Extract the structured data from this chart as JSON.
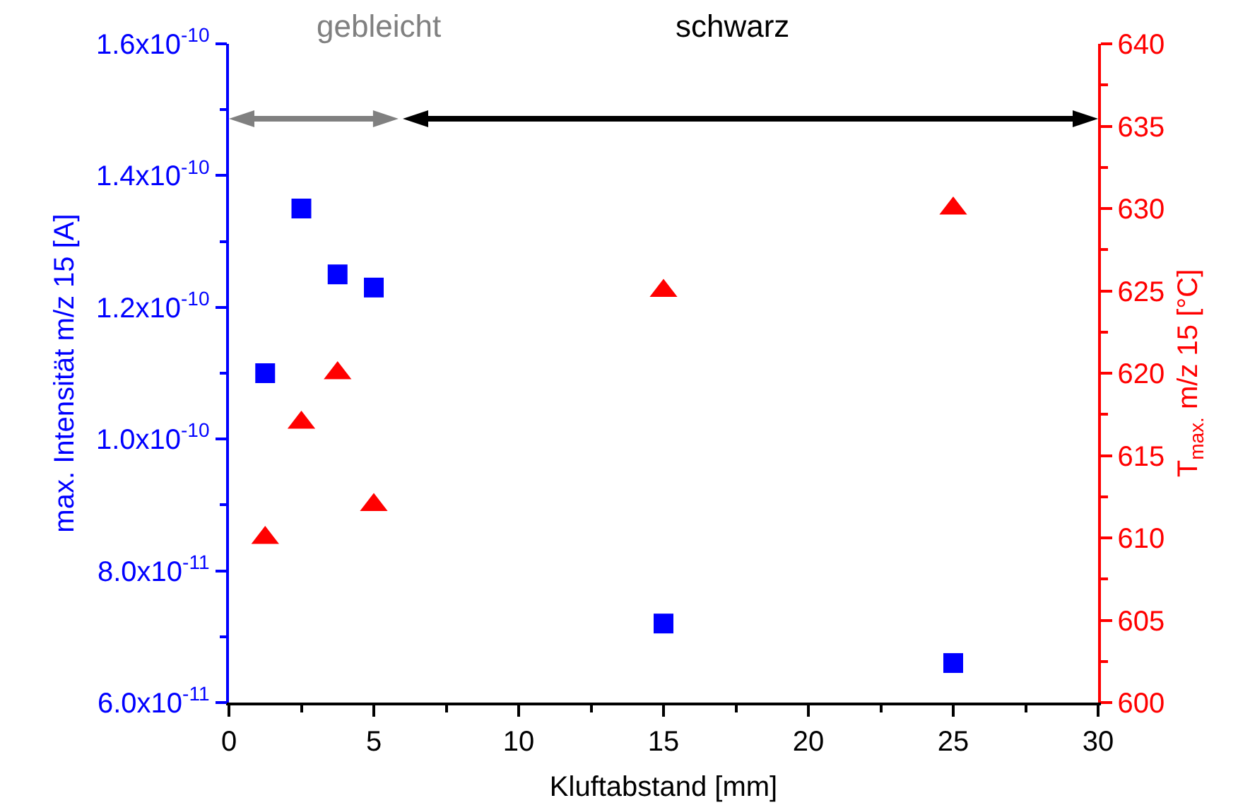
{
  "chart_data": {
    "type": "scatter",
    "xlabel": "Kluftabstand [mm]",
    "ylabel": "max. Intensität m/z 15 [A]",
    "y2label": "T$_{max.}$ m/z 15 [°C]",
    "x": [
      1.25,
      2.5,
      3.75,
      5,
      15,
      25
    ],
    "series": [
      {
        "color": "#0000ff",
        "marker": "square",
        "values": [
          1.1e-10,
          1.35e-10,
          1.25e-10,
          1.23e-10,
          7.2e-11,
          6.6e-11
        ]
      },
      {
        "color": "#ff0000",
        "marker": "triangle",
        "axis": "y2",
        "values": [
          610,
          617,
          620,
          612,
          625,
          630
        ]
      }
    ],
    "xlim": [
      0,
      30
    ],
    "xticks": [
      0,
      5,
      10,
      15,
      20,
      25,
      30
    ],
    "ylim": [
      6e-11,
      1.6e-10
    ],
    "yticks": [
      {
        "value": 6e-11,
        "label": "6.0x10$^{-11}$"
      },
      {
        "value": 8e-11,
        "label": "8.0x10$^{-11}$"
      },
      {
        "value": 1e-10,
        "label": "1.0x10$^{-10}$"
      },
      {
        "value": 1.2e-10,
        "label": "1.2x10$^{-10}$"
      },
      {
        "value": 1.4e-10,
        "label": "1.4x10$^{-10}$"
      },
      {
        "value": 1.6e-10,
        "label": "1.6x10$^{-10}$"
      }
    ],
    "y2lim": [
      600,
      640
    ],
    "y2ticks": [
      600,
      605,
      610,
      615,
      620,
      625,
      630,
      635,
      640
    ],
    "annotations": [
      "gebleicht",
      "schwarz"
    ],
    "grid": false,
    "legend": false
  }
}
